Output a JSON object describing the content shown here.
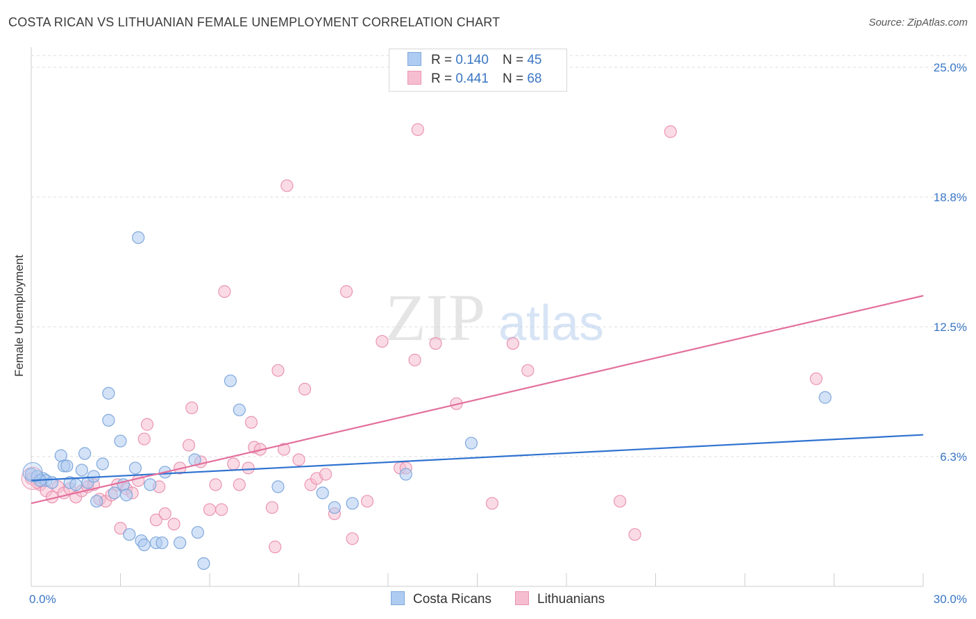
{
  "header": {
    "title": "COSTA RICAN VS LITHUANIAN FEMALE UNEMPLOYMENT CORRELATION CHART",
    "source": "Source: ZipAtlas.com"
  },
  "watermark": {
    "zip": "ZIP",
    "atlas": "atlas"
  },
  "legend_top": [
    {
      "r_label": "R =",
      "r_value": "0.140",
      "n_label": "N =",
      "n_value": "45"
    },
    {
      "r_label": "R =",
      "r_value": "0.441",
      "n_label": "N =",
      "n_value": "68"
    }
  ],
  "legend_bottom": [
    {
      "label": "Costa Ricans"
    },
    {
      "label": "Lithuanians"
    }
  ],
  "colors": {
    "blue_fill": "#aecbf1",
    "blue_stroke": "#7fa8dc",
    "blue_line": "#2f72d0",
    "pink_fill": "#f6bdd0",
    "pink_stroke": "#ea94b2",
    "pink_line": "#e36f9b",
    "tick_label": "#3a76c4",
    "grid": "#dddddd",
    "axis": "#cccccc"
  },
  "chart_data": {
    "type": "scatter",
    "title": "COSTA RICAN VS LITHUANIAN FEMALE UNEMPLOYMENT CORRELATION CHART",
    "xlabel": "",
    "ylabel": "Female Unemployment",
    "xlim": [
      0,
      30
    ],
    "ylim": [
      0,
      25
    ],
    "x_tick_labels": [
      {
        "value": 0,
        "label": "0.0%"
      },
      {
        "value": 30,
        "label": "30.0%"
      }
    ],
    "y_tick_labels": [
      {
        "value": 6.25,
        "label": "6.3%"
      },
      {
        "value": 12.5,
        "label": "12.5%"
      },
      {
        "value": 18.75,
        "label": "18.8%"
      },
      {
        "value": 25,
        "label": "25.0%"
      }
    ],
    "legend_position": "top-center",
    "series": [
      {
        "name": "Costa Ricans",
        "r": 0.14,
        "n": 45,
        "trend": {
          "x": [
            0,
            30
          ],
          "y": [
            5.1,
            7.3
          ]
        },
        "points": [
          [
            0.0,
            5.4
          ],
          [
            0.2,
            5.3
          ],
          [
            0.4,
            5.2
          ],
          [
            0.5,
            5.1
          ],
          [
            0.7,
            5.0
          ],
          [
            1.0,
            6.3
          ],
          [
            1.1,
            5.8
          ],
          [
            1.2,
            5.8
          ],
          [
            1.3,
            5.0
          ],
          [
            1.5,
            4.9
          ],
          [
            1.7,
            5.6
          ],
          [
            1.8,
            6.4
          ],
          [
            1.9,
            5.0
          ],
          [
            2.1,
            5.3
          ],
          [
            2.2,
            4.1
          ],
          [
            2.4,
            5.9
          ],
          [
            2.6,
            8.0
          ],
          [
            2.6,
            9.3
          ],
          [
            2.8,
            4.5
          ],
          [
            3.0,
            7.0
          ],
          [
            3.1,
            4.9
          ],
          [
            3.2,
            4.4
          ],
          [
            3.3,
            2.5
          ],
          [
            3.5,
            5.7
          ],
          [
            3.6,
            16.8
          ],
          [
            3.7,
            2.2
          ],
          [
            3.8,
            2.0
          ],
          [
            4.0,
            4.9
          ],
          [
            4.2,
            2.1
          ],
          [
            4.4,
            2.1
          ],
          [
            4.5,
            5.5
          ],
          [
            5.0,
            2.1
          ],
          [
            5.5,
            6.1
          ],
          [
            5.6,
            2.6
          ],
          [
            5.8,
            1.1
          ],
          [
            6.7,
            9.9
          ],
          [
            7.0,
            8.5
          ],
          [
            8.3,
            4.8
          ],
          [
            9.8,
            4.5
          ],
          [
            10.2,
            3.8
          ],
          [
            10.8,
            4.0
          ],
          [
            12.6,
            5.4
          ],
          [
            14.8,
            6.9
          ],
          [
            26.7,
            9.1
          ],
          [
            0.3,
            5.1
          ]
        ]
      },
      {
        "name": "Lithuanians",
        "r": 0.441,
        "n": 68,
        "trend": {
          "x": [
            0,
            30
          ],
          "y": [
            4.0,
            14.0
          ]
        },
        "points": [
          [
            0.0,
            5.2
          ],
          [
            0.3,
            4.9
          ],
          [
            0.5,
            4.6
          ],
          [
            0.7,
            4.3
          ],
          [
            0.9,
            4.8
          ],
          [
            1.1,
            4.5
          ],
          [
            1.3,
            4.7
          ],
          [
            1.5,
            4.3
          ],
          [
            1.7,
            4.6
          ],
          [
            1.9,
            4.8
          ],
          [
            2.1,
            4.9
          ],
          [
            2.3,
            4.2
          ],
          [
            2.5,
            4.1
          ],
          [
            2.7,
            4.4
          ],
          [
            2.9,
            4.9
          ],
          [
            3.0,
            2.8
          ],
          [
            3.2,
            4.7
          ],
          [
            3.4,
            4.5
          ],
          [
            3.6,
            5.1
          ],
          [
            3.8,
            7.1
          ],
          [
            3.9,
            7.8
          ],
          [
            4.2,
            3.2
          ],
          [
            4.3,
            4.8
          ],
          [
            4.5,
            3.5
          ],
          [
            4.8,
            3.0
          ],
          [
            5.0,
            5.7
          ],
          [
            5.3,
            6.8
          ],
          [
            5.4,
            8.6
          ],
          [
            5.7,
            6.0
          ],
          [
            6.0,
            3.7
          ],
          [
            6.2,
            4.9
          ],
          [
            6.4,
            3.7
          ],
          [
            6.5,
            14.2
          ],
          [
            6.8,
            5.9
          ],
          [
            7.0,
            4.9
          ],
          [
            7.3,
            5.7
          ],
          [
            7.4,
            7.9
          ],
          [
            7.5,
            6.7
          ],
          [
            7.7,
            6.6
          ],
          [
            8.1,
            3.8
          ],
          [
            8.2,
            1.9
          ],
          [
            8.3,
            10.4
          ],
          [
            8.5,
            6.6
          ],
          [
            8.6,
            19.3
          ],
          [
            9.0,
            6.1
          ],
          [
            9.2,
            9.5
          ],
          [
            9.4,
            4.9
          ],
          [
            9.6,
            5.2
          ],
          [
            9.9,
            5.4
          ],
          [
            10.2,
            3.5
          ],
          [
            10.6,
            14.2
          ],
          [
            10.8,
            2.3
          ],
          [
            11.3,
            4.1
          ],
          [
            11.8,
            11.8
          ],
          [
            12.4,
            5.7
          ],
          [
            12.6,
            5.7
          ],
          [
            12.9,
            10.9
          ],
          [
            13.0,
            22.0
          ],
          [
            13.6,
            11.7
          ],
          [
            14.3,
            8.8
          ],
          [
            15.5,
            4.0
          ],
          [
            16.2,
            11.7
          ],
          [
            16.7,
            10.4
          ],
          [
            19.8,
            4.1
          ],
          [
            20.3,
            2.5
          ],
          [
            21.5,
            21.9
          ],
          [
            26.4,
            10.0
          ],
          [
            0.2,
            5.0
          ]
        ]
      }
    ]
  }
}
